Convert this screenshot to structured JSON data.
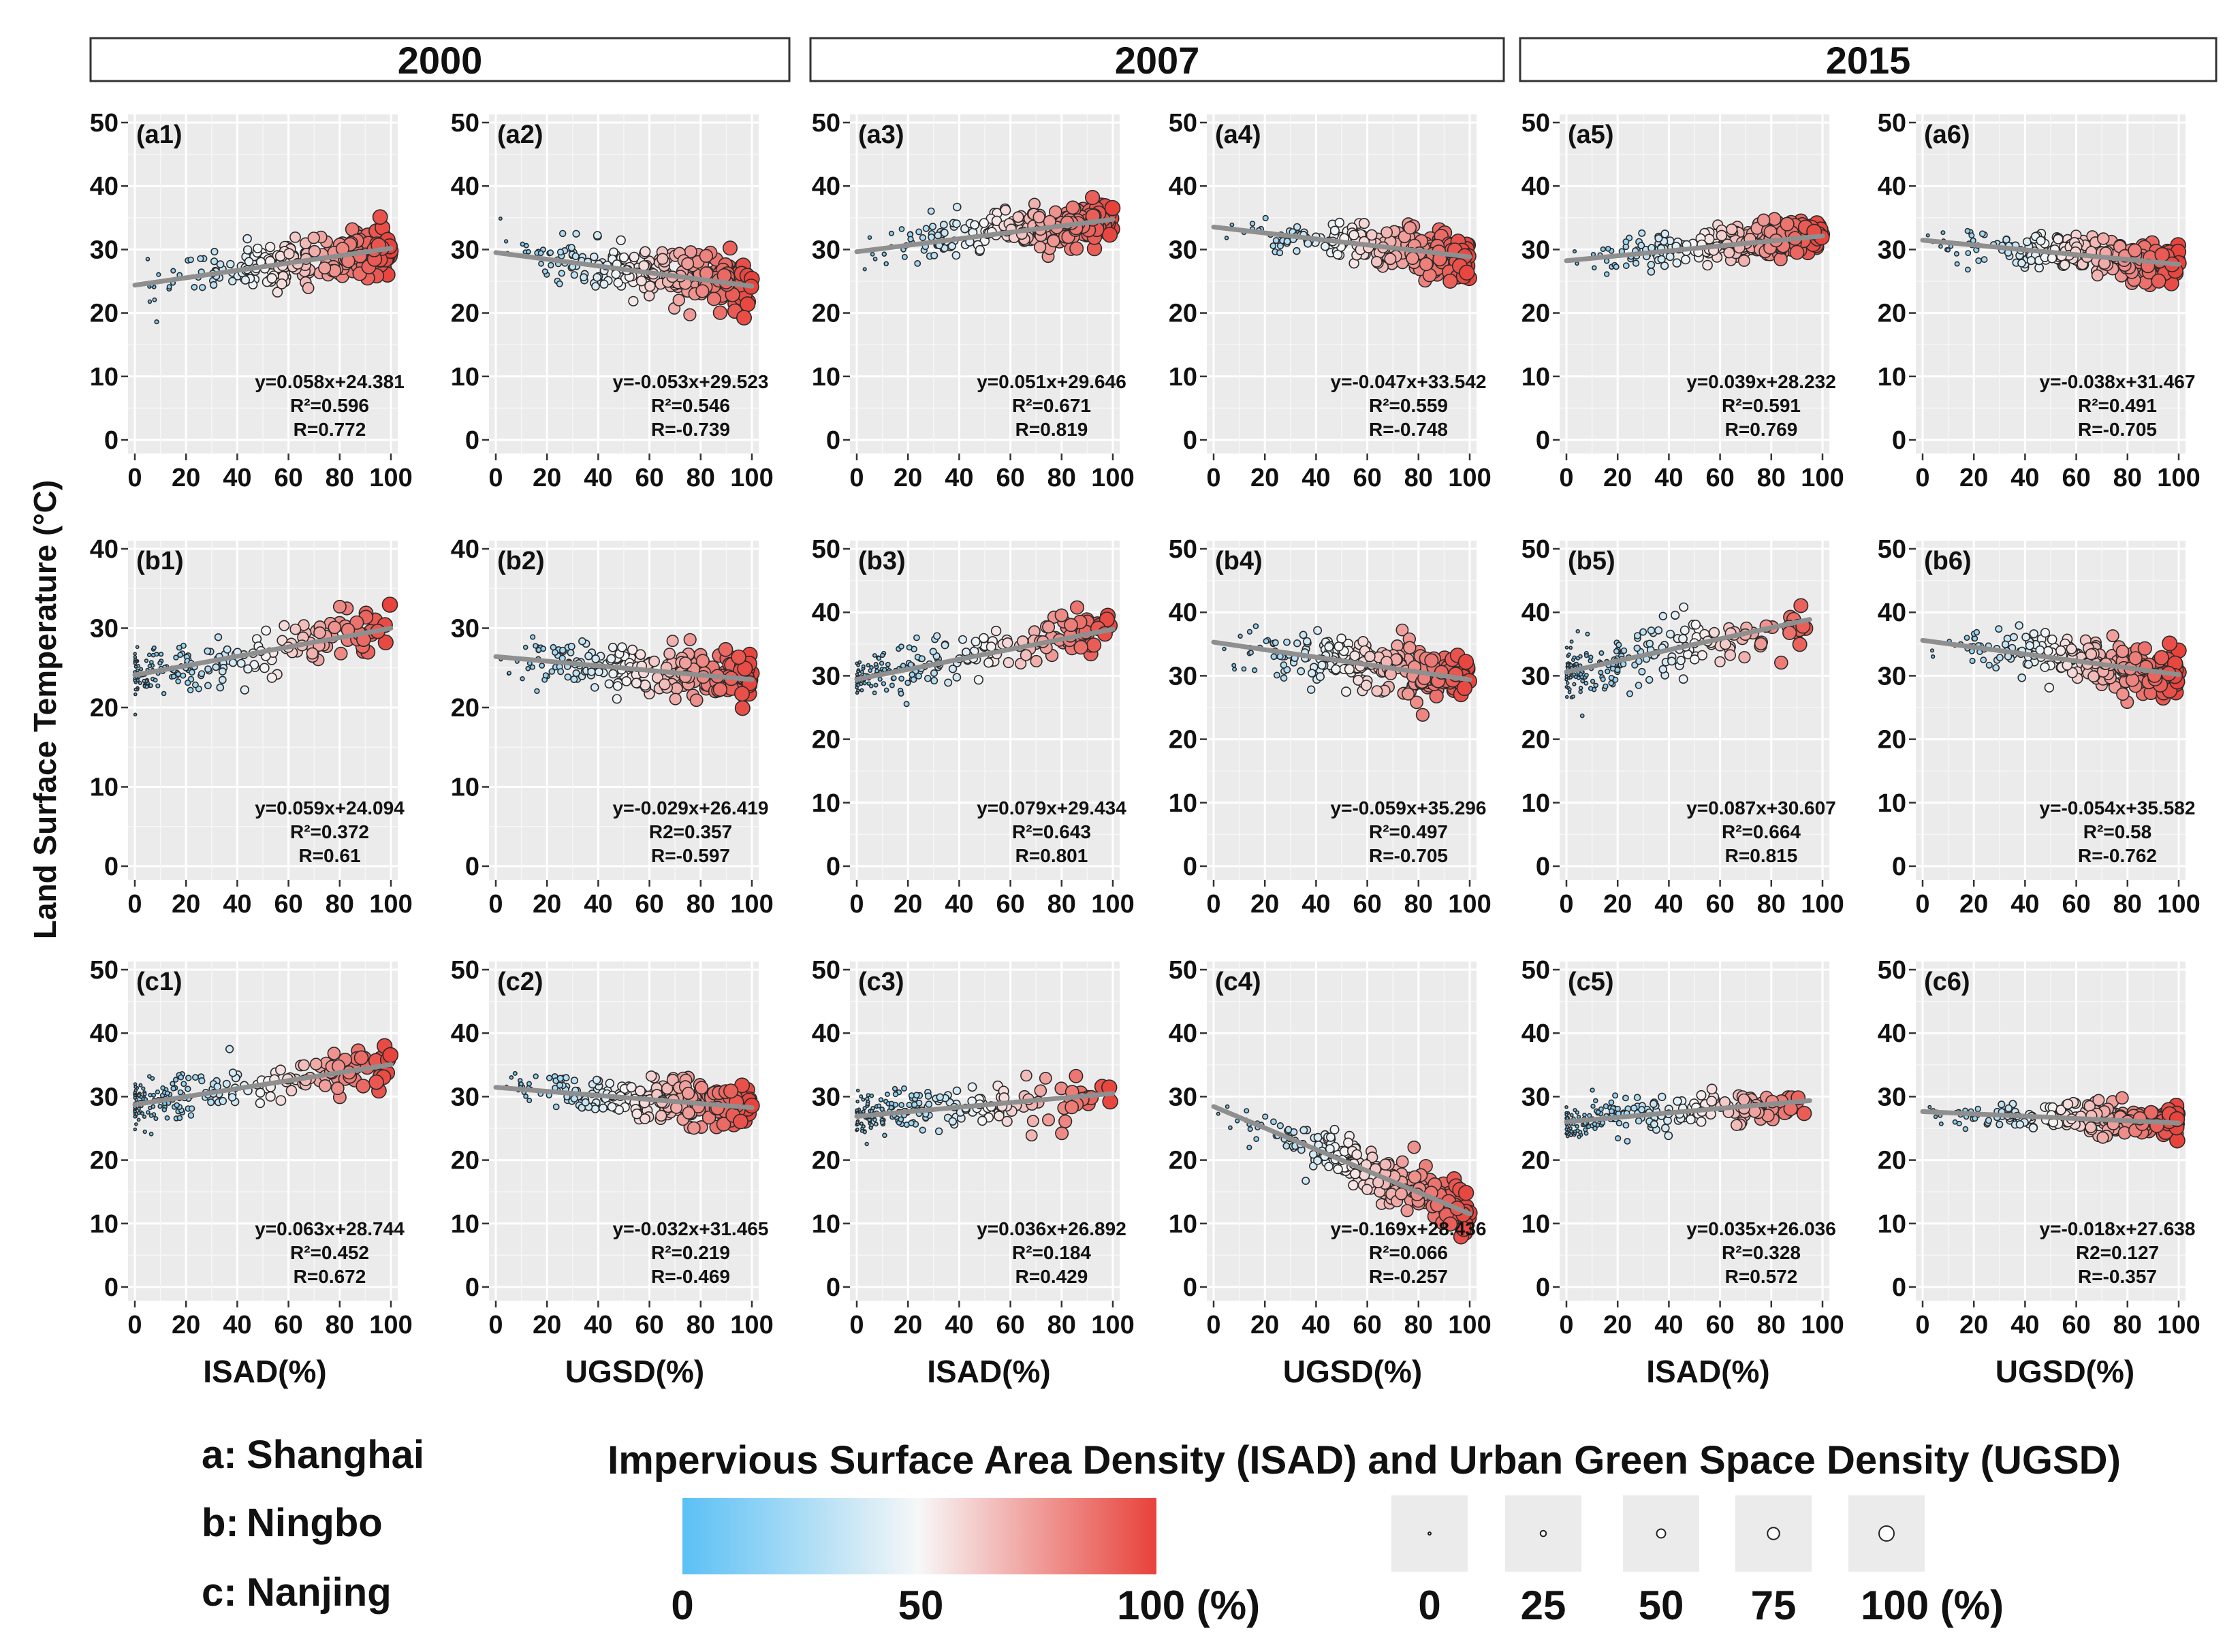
{
  "figure": {
    "y_axis_title": "Land Surface Temperature (°C)",
    "year_strips": [
      "2000",
      "2007",
      "2015"
    ],
    "x_titles": [
      "ISAD(%)",
      "UGSD(%)",
      "ISAD(%)",
      "UGSD(%)",
      "ISAD(%)",
      "UGSD(%)"
    ],
    "x_ticks": [
      "0",
      "20",
      "40",
      "60",
      "80",
      "100"
    ],
    "colors": {
      "low": "#5bc0f5",
      "mid": "#f7f7f7",
      "high": "#e8423b",
      "panel_bg": "#ebebeb",
      "regression_line": "#8f8f8f"
    }
  },
  "legend": {
    "cities": [
      {
        "key": "a:",
        "name": "Shanghai"
      },
      {
        "key": "b:",
        "name": "Ningbo"
      },
      {
        "key": "c:",
        "name": "Nanjing"
      }
    ],
    "title": "Impervious Surface Area Density (ISAD) and Urban Green Space Density (UGSD)",
    "color_ticks": [
      "0",
      "50",
      "100 (%)"
    ],
    "size_ticks": [
      "0",
      "25",
      "50",
      "75",
      "100 (%)"
    ],
    "size_values": [
      0,
      25,
      50,
      75,
      100
    ]
  },
  "chart_data": [
    {
      "type": "scatter",
      "panel": "(a1)",
      "city": "Shanghai",
      "year": "2000",
      "xlabel": "ISAD(%)",
      "yticks": [
        "0",
        "10",
        "20",
        "30",
        "40",
        "50"
      ],
      "ylim": [
        0,
        50
      ],
      "xlim": [
        0,
        100
      ],
      "slope": 0.058,
      "intercept": 24.381,
      "x_range": [
        0,
        100
      ],
      "x_density": "high",
      "spread": 1.8,
      "equation": "y=0.058x+24.381",
      "r2": "R²=0.596",
      "r": "R=0.772"
    },
    {
      "type": "scatter",
      "panel": "(a2)",
      "city": "Shanghai",
      "year": "2000",
      "xlabel": "UGSD(%)",
      "yticks": [
        "0",
        "10",
        "20",
        "30",
        "40",
        "50"
      ],
      "ylim": [
        0,
        50
      ],
      "xlim": [
        0,
        100
      ],
      "slope": -0.053,
      "intercept": 29.523,
      "x_range": [
        0,
        100
      ],
      "x_density": "high",
      "spread": 2.0,
      "equation": "y=-0.053x+29.523",
      "r2": "R²=0.546",
      "r": "R=-0.739"
    },
    {
      "type": "scatter",
      "panel": "(a3)",
      "city": "Shanghai",
      "year": "2007",
      "xlabel": "ISAD(%)",
      "yticks": [
        "0",
        "10",
        "20",
        "30",
        "40",
        "50"
      ],
      "ylim": [
        0,
        50
      ],
      "xlim": [
        0,
        100
      ],
      "slope": 0.051,
      "intercept": 29.646,
      "x_range": [
        0,
        100
      ],
      "x_density": "high",
      "spread": 1.6,
      "equation": "y=0.051x+29.646",
      "r2": "R²=0.671",
      "r": "R=0.819"
    },
    {
      "type": "scatter",
      "panel": "(a4)",
      "city": "Shanghai",
      "year": "2007",
      "xlabel": "UGSD(%)",
      "yticks": [
        "0",
        "10",
        "20",
        "30",
        "40",
        "50"
      ],
      "ylim": [
        0,
        50
      ],
      "xlim": [
        0,
        100
      ],
      "slope": -0.047,
      "intercept": 33.542,
      "x_range": [
        0,
        100
      ],
      "x_density": "high",
      "spread": 1.6,
      "equation": "y=-0.047x+33.542",
      "r2": "R²=0.559",
      "r": "R=-0.748"
    },
    {
      "type": "scatter",
      "panel": "(a5)",
      "city": "Shanghai",
      "year": "2015",
      "xlabel": "ISAD(%)",
      "yticks": [
        "0",
        "10",
        "20",
        "30",
        "40",
        "50"
      ],
      "ylim": [
        0,
        50
      ],
      "xlim": [
        0,
        100
      ],
      "slope": 0.039,
      "intercept": 28.232,
      "x_range": [
        0,
        100
      ],
      "x_density": "high",
      "spread": 1.5,
      "equation": "y=0.039x+28.232",
      "r2": "R²=0.591",
      "r": "R=0.769"
    },
    {
      "type": "scatter",
      "panel": "(a6)",
      "city": "Shanghai",
      "year": "2015",
      "xlabel": "UGSD(%)",
      "yticks": [
        "0",
        "10",
        "20",
        "30",
        "40",
        "50"
      ],
      "ylim": [
        0,
        50
      ],
      "xlim": [
        0,
        100
      ],
      "slope": -0.038,
      "intercept": 31.467,
      "x_range": [
        0,
        100
      ],
      "x_density": "high",
      "spread": 1.4,
      "equation": "y=-0.038x+31.467",
      "r2": "R²=0.491",
      "r": "R=-0.705"
    },
    {
      "type": "scatter",
      "panel": "(b1)",
      "city": "Ningbo",
      "year": "2000",
      "xlabel": "ISAD(%)",
      "yticks": [
        "0",
        "10",
        "20",
        "30",
        "40"
      ],
      "ylim": [
        0,
        40
      ],
      "xlim": [
        0,
        100
      ],
      "slope": 0.059,
      "intercept": 24.094,
      "x_range": [
        0,
        100
      ],
      "x_density": "low",
      "spread": 1.5,
      "equation": "y=0.059x+24.094",
      "r2": "R²=0.372",
      "r": "R=0.61"
    },
    {
      "type": "scatter",
      "panel": "(b2)",
      "city": "Ningbo",
      "year": "2000",
      "xlabel": "UGSD(%)",
      "yticks": [
        "0",
        "10",
        "20",
        "30",
        "40"
      ],
      "ylim": [
        0,
        40
      ],
      "xlim": [
        0,
        100
      ],
      "slope": -0.029,
      "intercept": 26.419,
      "x_range": [
        0,
        100
      ],
      "x_density": "high",
      "spread": 1.6,
      "equation": "y=-0.029x+26.419",
      "r2": "R2=0.357",
      "r": "R=-0.597"
    },
    {
      "type": "scatter",
      "panel": "(b3)",
      "city": "Ningbo",
      "year": "2007",
      "xlabel": "ISAD(%)",
      "yticks": [
        "0",
        "10",
        "20",
        "30",
        "40",
        "50"
      ],
      "ylim": [
        0,
        50
      ],
      "xlim": [
        0,
        100
      ],
      "slope": 0.079,
      "intercept": 29.434,
      "x_range": [
        0,
        100
      ],
      "x_density": "low",
      "spread": 1.8,
      "equation": "y=0.079x+29.434",
      "r2": "R²=0.643",
      "r": "R=0.801"
    },
    {
      "type": "scatter",
      "panel": "(b4)",
      "city": "Ningbo",
      "year": "2007",
      "xlabel": "UGSD(%)",
      "yticks": [
        "0",
        "10",
        "20",
        "30",
        "40",
        "50"
      ],
      "ylim": [
        0,
        50
      ],
      "xlim": [
        0,
        100
      ],
      "slope": -0.059,
      "intercept": 35.296,
      "x_range": [
        0,
        100
      ],
      "x_density": "high",
      "spread": 2.0,
      "equation": "y=-0.059x+35.296",
      "r2": "R²=0.497",
      "r": "R=-0.705"
    },
    {
      "type": "scatter",
      "panel": "(b5)",
      "city": "Ningbo",
      "year": "2015",
      "xlabel": "ISAD(%)",
      "yticks": [
        "0",
        "10",
        "20",
        "30",
        "40",
        "50"
      ],
      "ylim": [
        0,
        50
      ],
      "xlim": [
        0,
        100
      ],
      "slope": 0.087,
      "intercept": 30.607,
      "x_range": [
        0,
        95
      ],
      "x_density": "low",
      "spread": 2.2,
      "equation": "y=0.087x+30.607",
      "r2": "R²=0.664",
      "r": "R=0.815"
    },
    {
      "type": "scatter",
      "panel": "(b6)",
      "city": "Ningbo",
      "year": "2015",
      "xlabel": "UGSD(%)",
      "yticks": [
        "0",
        "10",
        "20",
        "30",
        "40",
        "50"
      ],
      "ylim": [
        0,
        50
      ],
      "xlim": [
        0,
        100
      ],
      "slope": -0.054,
      "intercept": 35.582,
      "x_range": [
        0,
        100
      ],
      "x_density": "high",
      "spread": 1.8,
      "equation": "y=-0.054x+35.582",
      "r2": "R²=0.58",
      "r": "R=-0.762"
    },
    {
      "type": "scatter",
      "panel": "(c1)",
      "city": "Nanjing",
      "year": "2000",
      "xlabel": "ISAD(%)",
      "yticks": [
        "0",
        "10",
        "20",
        "30",
        "40",
        "50"
      ],
      "ylim": [
        0,
        50
      ],
      "xlim": [
        0,
        100
      ],
      "slope": 0.063,
      "intercept": 28.744,
      "x_range": [
        0,
        100
      ],
      "x_density": "low",
      "spread": 1.8,
      "equation": "y=0.063x+28.744",
      "r2": "R²=0.452",
      "r": "R=0.672"
    },
    {
      "type": "scatter",
      "panel": "(c2)",
      "city": "Nanjing",
      "year": "2000",
      "xlabel": "UGSD(%)",
      "yticks": [
        "0",
        "10",
        "20",
        "30",
        "40",
        "50"
      ],
      "ylim": [
        0,
        50
      ],
      "xlim": [
        0,
        100
      ],
      "slope": -0.032,
      "intercept": 31.465,
      "x_range": [
        0,
        100
      ],
      "x_density": "high",
      "spread": 1.6,
      "equation": "y=-0.032x+31.465",
      "r2": "R²=0.219",
      "r": "R=-0.469"
    },
    {
      "type": "scatter",
      "panel": "(c3)",
      "city": "Nanjing",
      "year": "2007",
      "xlabel": "ISAD(%)",
      "yticks": [
        "0",
        "10",
        "20",
        "30",
        "40",
        "50"
      ],
      "ylim": [
        0,
        50
      ],
      "xlim": [
        0,
        100
      ],
      "slope": 0.036,
      "intercept": 26.892,
      "x_range": [
        0,
        100
      ],
      "x_density": "low",
      "spread": 1.8,
      "equation": "y=0.036x+26.892",
      "r2": "R²=0.184",
      "r": "R=0.429"
    },
    {
      "type": "scatter",
      "panel": "(c4)",
      "city": "Nanjing",
      "year": "2007",
      "xlabel": "UGSD(%)",
      "yticks": [
        "0",
        "10",
        "20",
        "30",
        "40",
        "50"
      ],
      "ylim": [
        0,
        50
      ],
      "xlim": [
        0,
        100
      ],
      "slope": -0.169,
      "intercept": 28.436,
      "x_range": [
        0,
        100
      ],
      "x_density": "high",
      "spread": 1.8,
      "equation": "y=-0.169x+28.436",
      "r2": "R²=0.066",
      "r": "R=-0.257"
    },
    {
      "type": "scatter",
      "panel": "(c5)",
      "city": "Nanjing",
      "year": "2015",
      "xlabel": "ISAD(%)",
      "yticks": [
        "0",
        "10",
        "20",
        "30",
        "40",
        "50"
      ],
      "ylim": [
        0,
        50
      ],
      "xlim": [
        0,
        100
      ],
      "slope": 0.035,
      "intercept": 26.036,
      "x_range": [
        0,
        95
      ],
      "x_density": "low",
      "spread": 1.4,
      "equation": "y=0.035x+26.036",
      "r2": "R²=0.328",
      "r": "R=0.572"
    },
    {
      "type": "scatter",
      "panel": "(c6)",
      "city": "Nanjing",
      "year": "2015",
      "xlabel": "UGSD(%)",
      "yticks": [
        "0",
        "10",
        "20",
        "30",
        "40",
        "50"
      ],
      "ylim": [
        0,
        50
      ],
      "xlim": [
        0,
        100
      ],
      "slope": -0.018,
      "intercept": 27.638,
      "x_range": [
        0,
        100
      ],
      "x_density": "high",
      "spread": 1.2,
      "equation": "y=-0.018x+27.638",
      "r2": "R2=0.127",
      "r": "R=-0.357"
    }
  ]
}
